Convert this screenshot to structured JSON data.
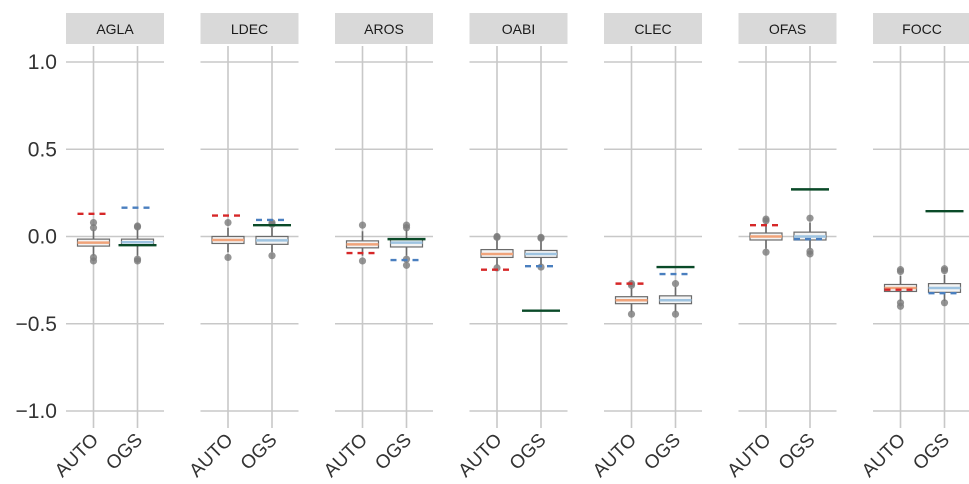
{
  "chart_data": {
    "type": "boxplot",
    "ylim": [
      -1.15,
      1.2
    ],
    "yticks": [
      {
        "value": 1.0,
        "label": "1.0"
      },
      {
        "value": 0.5,
        "label": "0.5"
      },
      {
        "value": 0.0,
        "label": "0.0"
      },
      {
        "value": -0.5,
        "label": "−0.5"
      },
      {
        "value": -1.0,
        "label": "−1.0"
      }
    ],
    "groups": [
      "AUTO",
      "OGS"
    ],
    "grid": true,
    "colors": {
      "strip_bg": "#d9d9d9",
      "grid": "#c8c8c8",
      "box_stroke": "#6b6b6b",
      "auto_median": "#f0a37a",
      "ogs_median": "#9ec3e0",
      "auto_dashed": "#d62728",
      "ogs_dashed": "#4a7fbf",
      "reference": "#0a4a28",
      "outlier": "#7a7a7a"
    },
    "panels": [
      {
        "label": "AGLA",
        "auto": {
          "q1": -0.055,
          "median": -0.035,
          "q3": -0.015,
          "whisker_low": -0.11,
          "whisker_high": 0.04,
          "outliers": [
            0.08,
            0.05,
            -0.12,
            -0.14
          ],
          "dashed": 0.13
        },
        "ogs": {
          "q1": -0.05,
          "median": -0.033,
          "q3": -0.015,
          "whisker_low": -0.11,
          "whisker_high": 0.04,
          "outliers": [
            0.06,
            0.055,
            -0.13,
            -0.14
          ],
          "dashed": 0.165
        },
        "reference": -0.05
      },
      {
        "label": "LDEC",
        "auto": {
          "q1": -0.04,
          "median": -0.02,
          "q3": 0.0,
          "whisker_low": -0.09,
          "whisker_high": 0.05,
          "outliers": [
            0.08,
            -0.12
          ],
          "dashed": 0.12
        },
        "ogs": {
          "q1": -0.045,
          "median": -0.022,
          "q3": 0.0,
          "whisker_low": -0.09,
          "whisker_high": 0.05,
          "outliers": [
            0.08,
            0.07,
            -0.11
          ],
          "dashed": 0.095
        },
        "reference": 0.065
      },
      {
        "label": "AROS",
        "auto": {
          "q1": -0.065,
          "median": -0.045,
          "q3": -0.025,
          "whisker_low": -0.11,
          "whisker_high": 0.03,
          "outliers": [
            0.065,
            -0.14
          ],
          "dashed": -0.095
        },
        "ogs": {
          "q1": -0.06,
          "median": -0.035,
          "q3": -0.015,
          "whisker_low": -0.11,
          "whisker_high": 0.04,
          "outliers": [
            0.065,
            0.05,
            -0.13,
            -0.165
          ],
          "dashed": -0.135
        },
        "reference": -0.015
      },
      {
        "label": "OABI",
        "auto": {
          "q1": -0.12,
          "median": -0.1,
          "q3": -0.075,
          "whisker_low": -0.165,
          "whisker_high": -0.02,
          "outliers": [
            0.0,
            -0.005,
            -0.18
          ],
          "dashed": -0.19
        },
        "ogs": {
          "q1": -0.12,
          "median": -0.1,
          "q3": -0.08,
          "whisker_low": -0.165,
          "whisker_high": -0.02,
          "outliers": [
            -0.005,
            -0.01,
            -0.175
          ],
          "dashed": -0.17
        },
        "reference": -0.425
      },
      {
        "label": "CLEC",
        "auto": {
          "q1": -0.385,
          "median": -0.365,
          "q3": -0.345,
          "whisker_low": -0.43,
          "whisker_high": -0.295,
          "outliers": [
            -0.27,
            -0.28,
            -0.445
          ],
          "dashed": -0.27
        },
        "ogs": {
          "q1": -0.385,
          "median": -0.365,
          "q3": -0.34,
          "whisker_low": -0.43,
          "whisker_high": -0.29,
          "outliers": [
            -0.27,
            -0.445
          ],
          "dashed": -0.215
        },
        "reference": -0.175
      },
      {
        "label": "OFAS",
        "auto": {
          "q1": -0.02,
          "median": 0.0,
          "q3": 0.02,
          "whisker_low": -0.07,
          "whisker_high": 0.075,
          "outliers": [
            0.1,
            0.09,
            -0.09
          ],
          "dashed": 0.065
        },
        "ogs": {
          "q1": -0.02,
          "median": 0.0,
          "q3": 0.025,
          "whisker_low": -0.07,
          "whisker_high": 0.08,
          "outliers": [
            0.105,
            -0.085,
            -0.1
          ],
          "dashed": -0.015
        },
        "reference": 0.27
      },
      {
        "label": "FOCC",
        "auto": {
          "q1": -0.315,
          "median": -0.295,
          "q3": -0.275,
          "whisker_low": -0.37,
          "whisker_high": -0.225,
          "outliers": [
            -0.19,
            -0.2,
            -0.38,
            -0.4
          ],
          "dashed": -0.305
        },
        "ogs": {
          "q1": -0.32,
          "median": -0.295,
          "q3": -0.27,
          "whisker_low": -0.37,
          "whisker_high": -0.22,
          "outliers": [
            -0.185,
            -0.195,
            -0.38
          ],
          "dashed": -0.325
        },
        "reference": 0.145
      }
    ]
  }
}
